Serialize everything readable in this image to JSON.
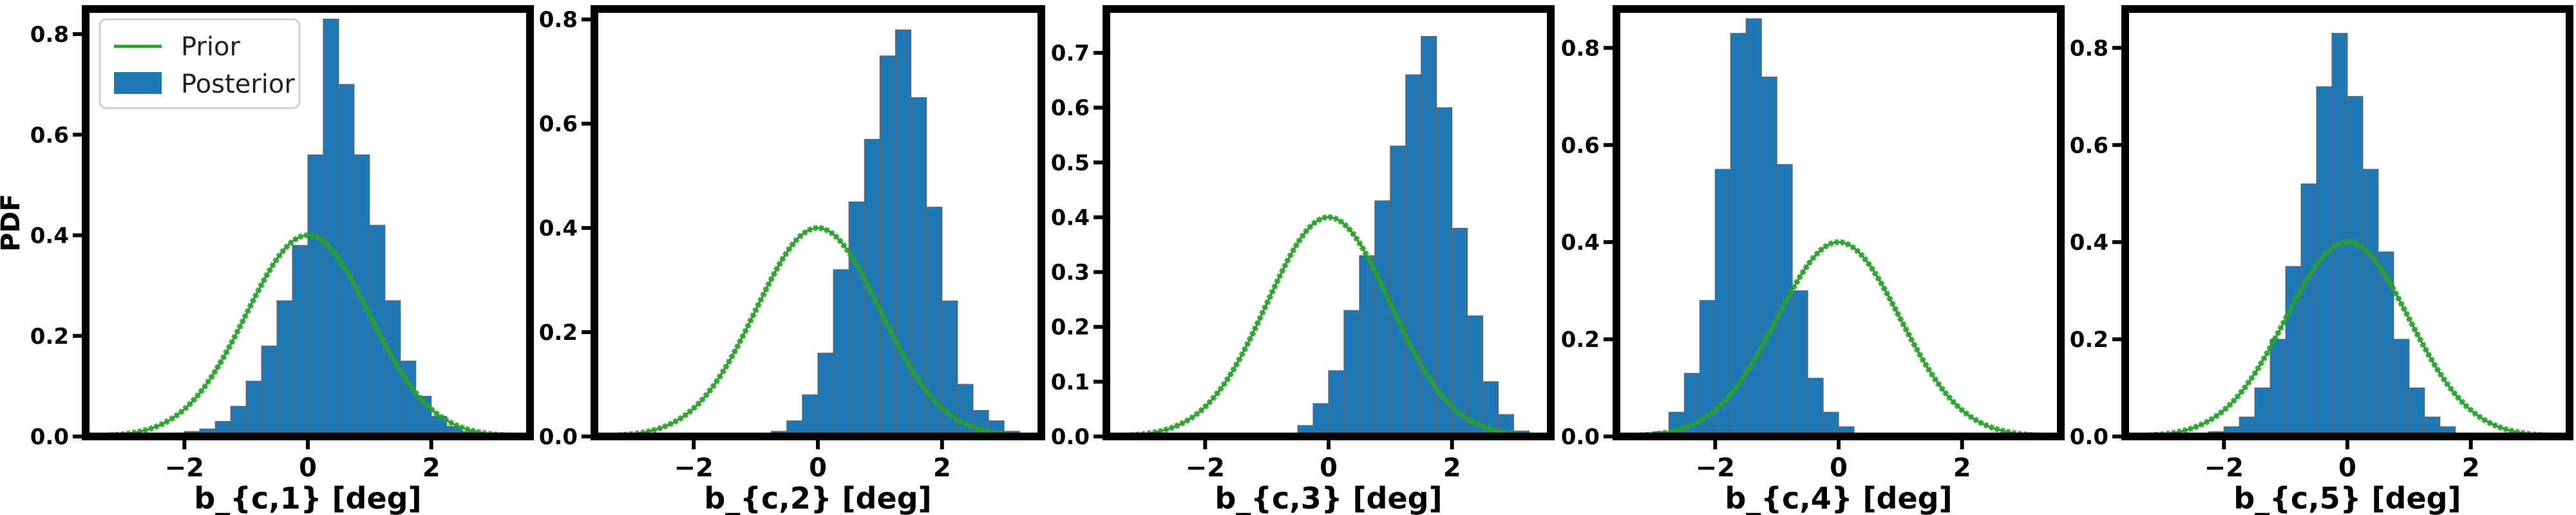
{
  "colors": {
    "posterior": "#1f77b4",
    "posterior_edge": "#666666",
    "prior": "#2ca02c",
    "axes": "#000000"
  },
  "legend": {
    "prior_label": "Prior",
    "posterior_label": "Posterior"
  },
  "chart_data": [
    {
      "type": "bar",
      "title": "",
      "xlabel": "b_{c,1} [deg]",
      "ylabel": "PDF",
      "xlim": [
        -3.6,
        3.6
      ],
      "ylim": [
        0,
        0.85
      ],
      "xticks": [
        -2,
        0,
        2
      ],
      "xtick_labels": [
        "−2",
        "0",
        "2"
      ],
      "yticks": [
        0,
        0.2,
        0.4,
        0.6,
        0.8
      ],
      "ytick_labels": [
        "0.0",
        "0.2",
        "0.4",
        "0.6",
        "0.8"
      ],
      "legend": true,
      "series": [
        {
          "name": "Posterior",
          "kind": "histogram",
          "bin_edges": [
            -3.25,
            -3.0,
            -2.75,
            -2.5,
            -2.25,
            -2.0,
            -1.75,
            -1.5,
            -1.25,
            -1.0,
            -0.75,
            -0.5,
            -0.25,
            0.0,
            0.25,
            0.5,
            0.75,
            1.0,
            1.25,
            1.5,
            1.75,
            2.0,
            2.25,
            2.5,
            2.75,
            3.0,
            3.25
          ],
          "counts": [
            0.002,
            0.002,
            0.003,
            0.005,
            0.007,
            0.01,
            0.015,
            0.03,
            0.06,
            0.11,
            0.18,
            0.27,
            0.38,
            0.56,
            0.83,
            0.7,
            0.56,
            0.42,
            0.27,
            0.15,
            0.08,
            0.04,
            0.02,
            0.01,
            0.004,
            0.002
          ]
        },
        {
          "name": "Prior",
          "kind": "normal",
          "mean": 0,
          "sd": 1,
          "peak": 0.4
        }
      ]
    },
    {
      "type": "bar",
      "title": "",
      "xlabel": "b_{c,2} [deg]",
      "ylabel": "",
      "xlim": [
        -3.6,
        3.6
      ],
      "ylim": [
        0,
        0.82
      ],
      "xticks": [
        -2,
        0,
        2
      ],
      "xtick_labels": [
        "−2",
        "0",
        "2"
      ],
      "yticks": [
        0,
        0.2,
        0.4,
        0.6,
        0.8
      ],
      "ytick_labels": [
        "0.0",
        "0.2",
        "0.4",
        "0.6",
        "0.8"
      ],
      "legend": false,
      "series": [
        {
          "name": "Posterior",
          "kind": "histogram",
          "bin_edges": [
            -1.0,
            -0.75,
            -0.5,
            -0.25,
            0.0,
            0.25,
            0.5,
            0.75,
            1.0,
            1.25,
            1.5,
            1.75,
            2.0,
            2.25,
            2.5,
            2.75,
            3.0,
            3.25
          ],
          "counts": [
            0.003,
            0.01,
            0.03,
            0.08,
            0.16,
            0.32,
            0.45,
            0.57,
            0.73,
            0.78,
            0.65,
            0.44,
            0.26,
            0.1,
            0.05,
            0.03,
            0.01
          ]
        },
        {
          "name": "Prior",
          "kind": "normal",
          "mean": 0,
          "sd": 1,
          "peak": 0.4
        }
      ]
    },
    {
      "type": "bar",
      "title": "",
      "xlabel": "b_{c,3} [deg]",
      "ylabel": "",
      "xlim": [
        -3.6,
        3.6
      ],
      "ylim": [
        0,
        0.78
      ],
      "xticks": [
        -2,
        0,
        2
      ],
      "xtick_labels": [
        "−2",
        "0",
        "2"
      ],
      "yticks": [
        0,
        0.1,
        0.2,
        0.3,
        0.4,
        0.5,
        0.6,
        0.7
      ],
      "ytick_labels": [
        "0.0",
        "0.1",
        "0.2",
        "0.3",
        "0.4",
        "0.5",
        "0.6",
        "0.7"
      ],
      "legend": false,
      "series": [
        {
          "name": "Posterior",
          "kind": "histogram",
          "bin_edges": [
            -0.75,
            -0.5,
            -0.25,
            0.0,
            0.25,
            0.5,
            0.75,
            1.0,
            1.25,
            1.5,
            1.75,
            2.0,
            2.25,
            2.5,
            2.75,
            3.0,
            3.25
          ],
          "counts": [
            0.003,
            0.02,
            0.06,
            0.12,
            0.23,
            0.33,
            0.43,
            0.53,
            0.66,
            0.73,
            0.6,
            0.38,
            0.22,
            0.1,
            0.04,
            0.01
          ]
        },
        {
          "name": "Prior",
          "kind": "normal",
          "mean": 0,
          "sd": 1,
          "peak": 0.4
        }
      ]
    },
    {
      "type": "bar",
      "title": "",
      "xlabel": "b_{c,4} [deg]",
      "ylabel": "",
      "xlim": [
        -3.6,
        3.6
      ],
      "ylim": [
        0,
        0.88
      ],
      "xticks": [
        -2,
        0,
        2
      ],
      "xtick_labels": [
        "−2",
        "0",
        "2"
      ],
      "yticks": [
        0,
        0.2,
        0.4,
        0.6,
        0.8
      ],
      "ytick_labels": [
        "0.0",
        "0.2",
        "0.4",
        "0.6",
        "0.8"
      ],
      "legend": false,
      "series": [
        {
          "name": "Posterior",
          "kind": "histogram",
          "bin_edges": [
            -3.0,
            -2.75,
            -2.5,
            -2.25,
            -2.0,
            -1.75,
            -1.5,
            -1.25,
            -1.0,
            -0.75,
            -0.5,
            -0.25,
            0.0,
            0.25,
            0.5
          ],
          "counts": [
            0.01,
            0.05,
            0.13,
            0.28,
            0.55,
            0.83,
            0.86,
            0.74,
            0.56,
            0.3,
            0.12,
            0.05,
            0.02,
            0.005
          ]
        },
        {
          "name": "Prior",
          "kind": "normal",
          "mean": 0,
          "sd": 1,
          "peak": 0.4
        }
      ]
    },
    {
      "type": "bar",
      "title": "",
      "xlabel": "b_{c,5} [deg]",
      "ylabel": "",
      "xlim": [
        -3.6,
        3.6
      ],
      "ylim": [
        0,
        0.88
      ],
      "xticks": [
        -2,
        0,
        2
      ],
      "xtick_labels": [
        "−2",
        "0",
        "2"
      ],
      "yticks": [
        0,
        0.2,
        0.4,
        0.6,
        0.8
      ],
      "ytick_labels": [
        "0.0",
        "0.2",
        "0.4",
        "0.6",
        "0.8"
      ],
      "legend": false,
      "series": [
        {
          "name": "Posterior",
          "kind": "histogram",
          "bin_edges": [
            -2.25,
            -2.0,
            -1.75,
            -1.5,
            -1.25,
            -1.0,
            -0.75,
            -0.5,
            -0.25,
            0.0,
            0.25,
            0.5,
            0.75,
            1.0,
            1.25,
            1.5,
            1.75,
            2.0
          ],
          "counts": [
            0.01,
            0.02,
            0.04,
            0.1,
            0.2,
            0.35,
            0.52,
            0.72,
            0.83,
            0.7,
            0.55,
            0.38,
            0.2,
            0.1,
            0.04,
            0.02,
            0.005
          ]
        },
        {
          "name": "Prior",
          "kind": "normal",
          "mean": 0,
          "sd": 1,
          "peak": 0.4
        }
      ]
    }
  ]
}
